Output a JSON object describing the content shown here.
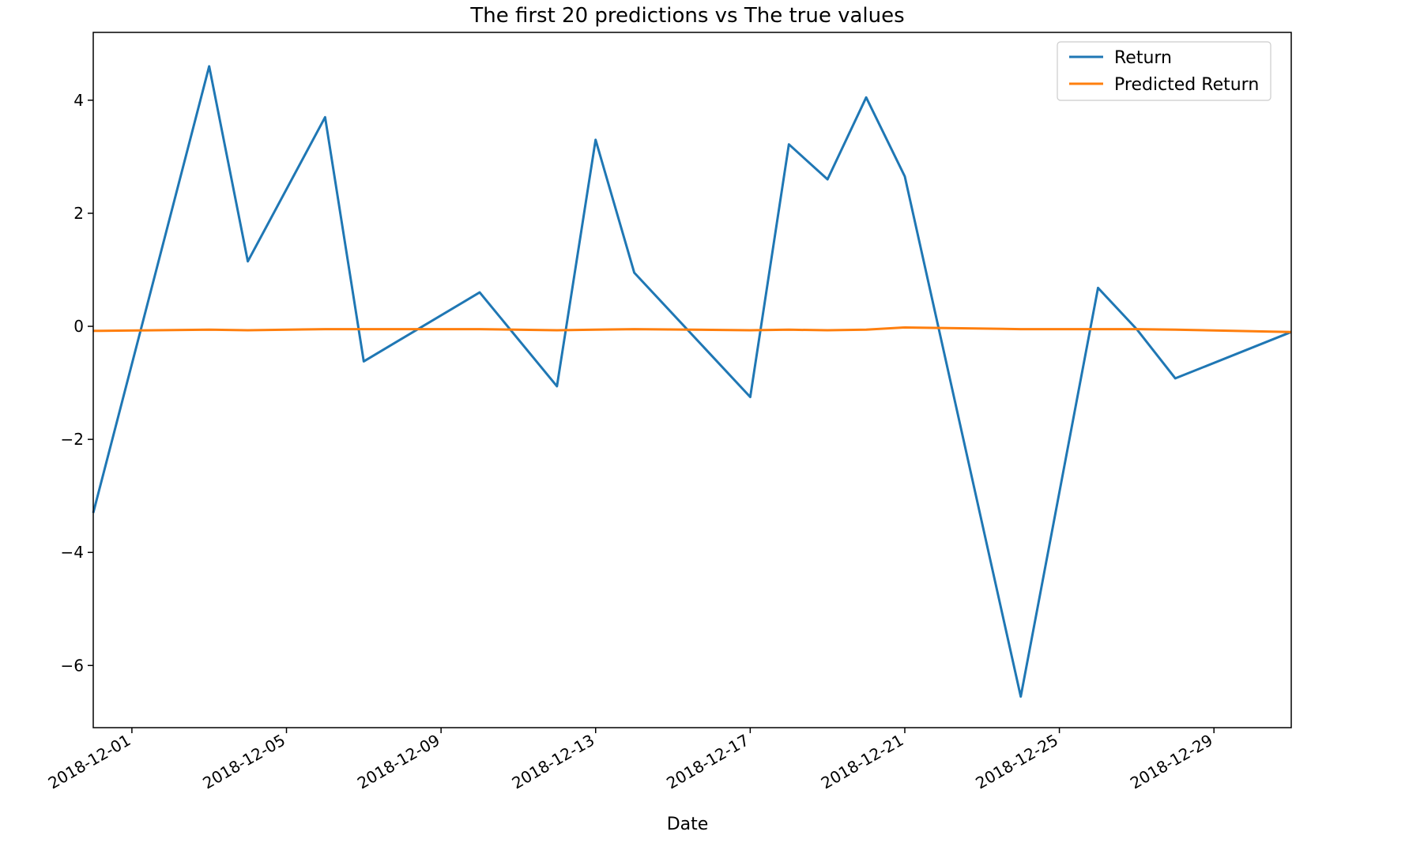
{
  "chart_data": {
    "type": "line",
    "title": "The first 20 predictions vs The true values",
    "xlabel": "Date",
    "ylabel": "",
    "xlim": [
      "2018-11-30",
      "2018-12-31"
    ],
    "ylim": [
      -7.1,
      5.2
    ],
    "x_ticks": [
      "2018-12-01",
      "2018-12-05",
      "2018-12-09",
      "2018-12-13",
      "2018-12-17",
      "2018-12-21",
      "2018-12-25",
      "2018-12-29"
    ],
    "y_ticks": [
      -6,
      -4,
      -2,
      0,
      2,
      4
    ],
    "y_tick_labels": [
      "−6",
      "−4",
      "−2",
      "0",
      "2",
      "4"
    ],
    "grid": false,
    "legend_position": "top-right",
    "series": [
      {
        "name": "Return",
        "color": "#1f77b4",
        "points": [
          [
            "2018-11-30",
            -3.3
          ],
          [
            "2018-12-03",
            4.6
          ],
          [
            "2018-12-04",
            1.15
          ],
          [
            "2018-12-06",
            3.7
          ],
          [
            "2018-12-07",
            -0.62
          ],
          [
            "2018-12-10",
            0.6
          ],
          [
            "2018-12-12",
            -1.06
          ],
          [
            "2018-12-13",
            3.3
          ],
          [
            "2018-12-14",
            0.95
          ],
          [
            "2018-12-17",
            -1.25
          ],
          [
            "2018-12-18",
            3.22
          ],
          [
            "2018-12-19",
            2.6
          ],
          [
            "2018-12-20",
            4.05
          ],
          [
            "2018-12-21",
            2.65
          ],
          [
            "2018-12-24",
            -6.55
          ],
          [
            "2018-12-26",
            0.68
          ],
          [
            "2018-12-27",
            -0.05
          ],
          [
            "2018-12-28",
            -0.92
          ],
          [
            "2018-12-31",
            -0.1
          ]
        ]
      },
      {
        "name": "Predicted Return",
        "color": "#ff7f0e",
        "points": [
          [
            "2018-11-30",
            -0.08
          ],
          [
            "2018-12-03",
            -0.06
          ],
          [
            "2018-12-04",
            -0.07
          ],
          [
            "2018-12-06",
            -0.05
          ],
          [
            "2018-12-07",
            -0.05
          ],
          [
            "2018-12-10",
            -0.05
          ],
          [
            "2018-12-12",
            -0.07
          ],
          [
            "2018-12-13",
            -0.06
          ],
          [
            "2018-12-14",
            -0.05
          ],
          [
            "2018-12-17",
            -0.07
          ],
          [
            "2018-12-18",
            -0.06
          ],
          [
            "2018-12-19",
            -0.07
          ],
          [
            "2018-12-20",
            -0.06
          ],
          [
            "2018-12-21",
            -0.02
          ],
          [
            "2018-12-24",
            -0.05
          ],
          [
            "2018-12-26",
            -0.05
          ],
          [
            "2018-12-27",
            -0.05
          ],
          [
            "2018-12-28",
            -0.06
          ],
          [
            "2018-12-31",
            -0.1
          ]
        ]
      }
    ]
  }
}
